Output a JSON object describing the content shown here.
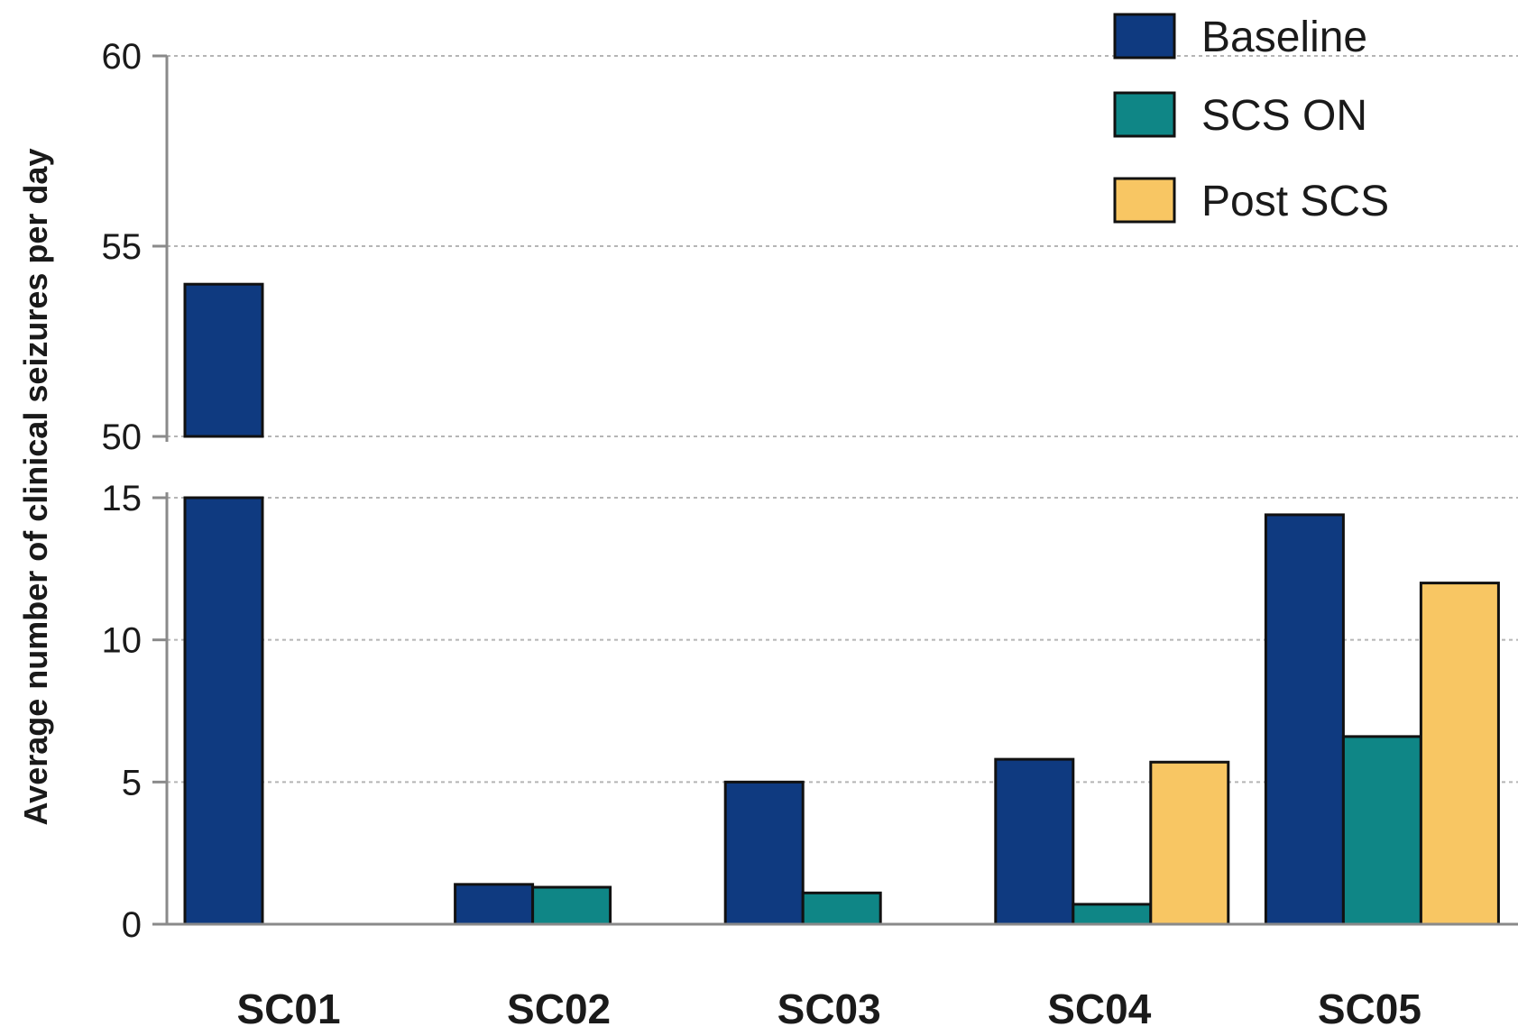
{
  "chart_data": {
    "type": "bar",
    "title": "",
    "xlabel": "",
    "ylabel": "Average number of clinical  seizures per day",
    "categories": [
      "SC01",
      "SC02",
      "SC03",
      "SC04",
      "SC05"
    ],
    "series": [
      {
        "name": "Baseline",
        "color": "#0f3a80",
        "values": [
          54,
          1.4,
          5.0,
          5.8,
          14.4
        ]
      },
      {
        "name": "SCS ON",
        "color": "#0f8686",
        "values": [
          0,
          1.3,
          1.1,
          0.7,
          6.6
        ]
      },
      {
        "name": "Post SCS",
        "color": "#f8c663",
        "values": [
          null,
          null,
          null,
          5.7,
          12.0
        ]
      }
    ],
    "y_axis": {
      "broken": true,
      "lower_segment": [
        0,
        15
      ],
      "upper_segment": [
        50,
        60
      ],
      "ticks": [
        "0",
        "5",
        "10",
        "15",
        "50",
        "55",
        "60"
      ]
    },
    "grid": true,
    "legend_position": "top-right"
  }
}
